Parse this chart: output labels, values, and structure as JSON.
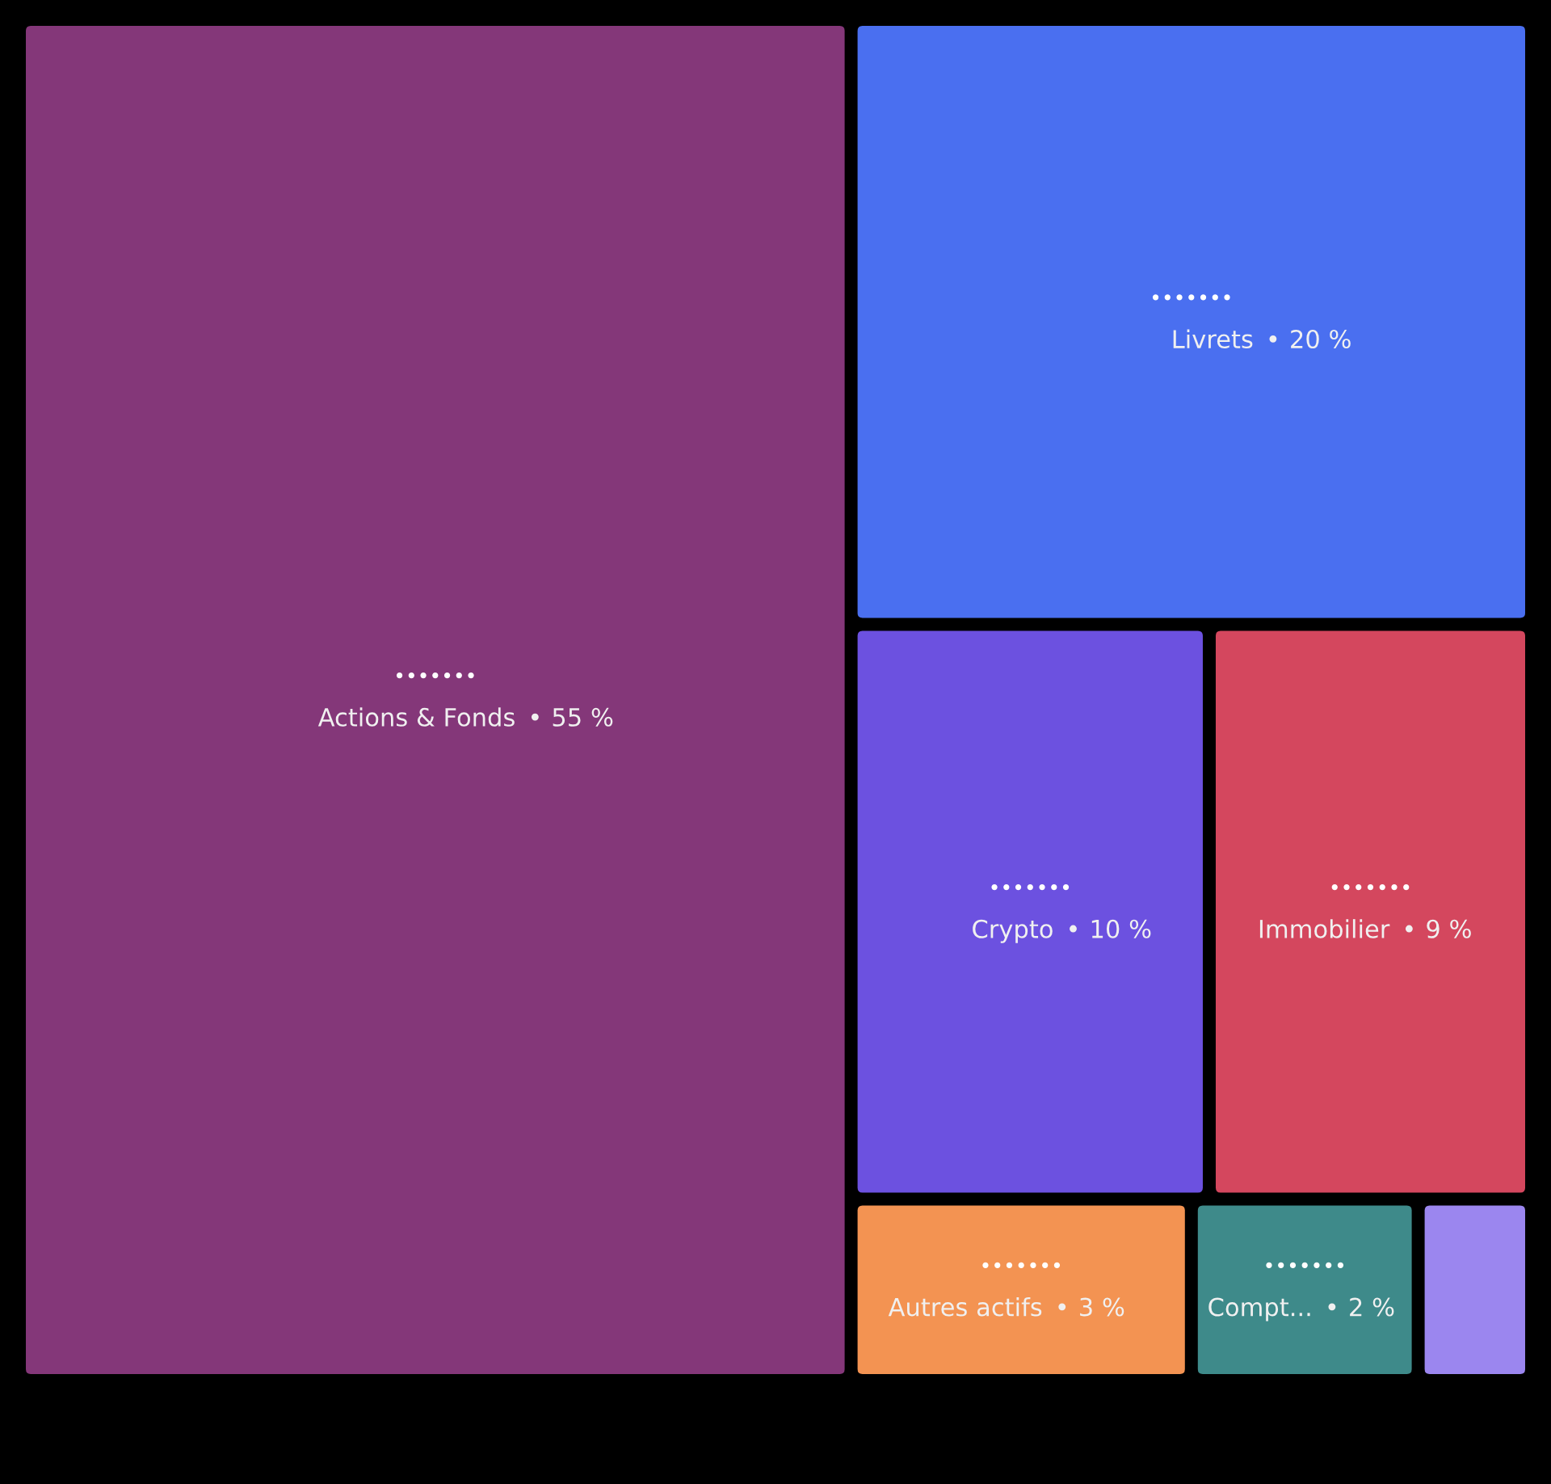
{
  "chart_data": {
    "type": "other",
    "categories": [
      "Actions & Fonds",
      "Livrets",
      "Crypto",
      "Immobilier",
      "Autres actifs",
      "Compt...",
      null
    ],
    "values": [
      55,
      20,
      10,
      9,
      3,
      2,
      null
    ],
    "value_labels": [
      "55 %",
      "20 %",
      "10 %",
      "9 %",
      "3 %",
      "2 %",
      null
    ],
    "colors": [
      "#843779",
      "#4a6ff0",
      "#6c51e0",
      "#d4475e",
      "#f39352",
      "#3e8a8a",
      "#9b86ef"
    ],
    "annotations": [
      {
        "text": "•••••••",
        "x": "Actions & Fonds"
      },
      {
        "text": "•••••••",
        "x": "Livrets"
      },
      {
        "text": "•••••••",
        "x": "Crypto"
      },
      {
        "text": "•••••••",
        "x": "Immobilier"
      },
      {
        "text": "•••••••",
        "x": "Autres actifs"
      },
      {
        "text": "•••••••",
        "x": "Compt..."
      },
      {
        "text": "•",
        "x": "Actions & Fonds"
      },
      {
        "text": "•",
        "x": "Livrets"
      },
      {
        "text": "•",
        "x": "Crypto"
      },
      {
        "text": "•",
        "x": "Immobilier"
      },
      {
        "text": "•",
        "x": "Autres actifs"
      },
      {
        "text": "•",
        "x": "Compt..."
      }
    ]
  }
}
